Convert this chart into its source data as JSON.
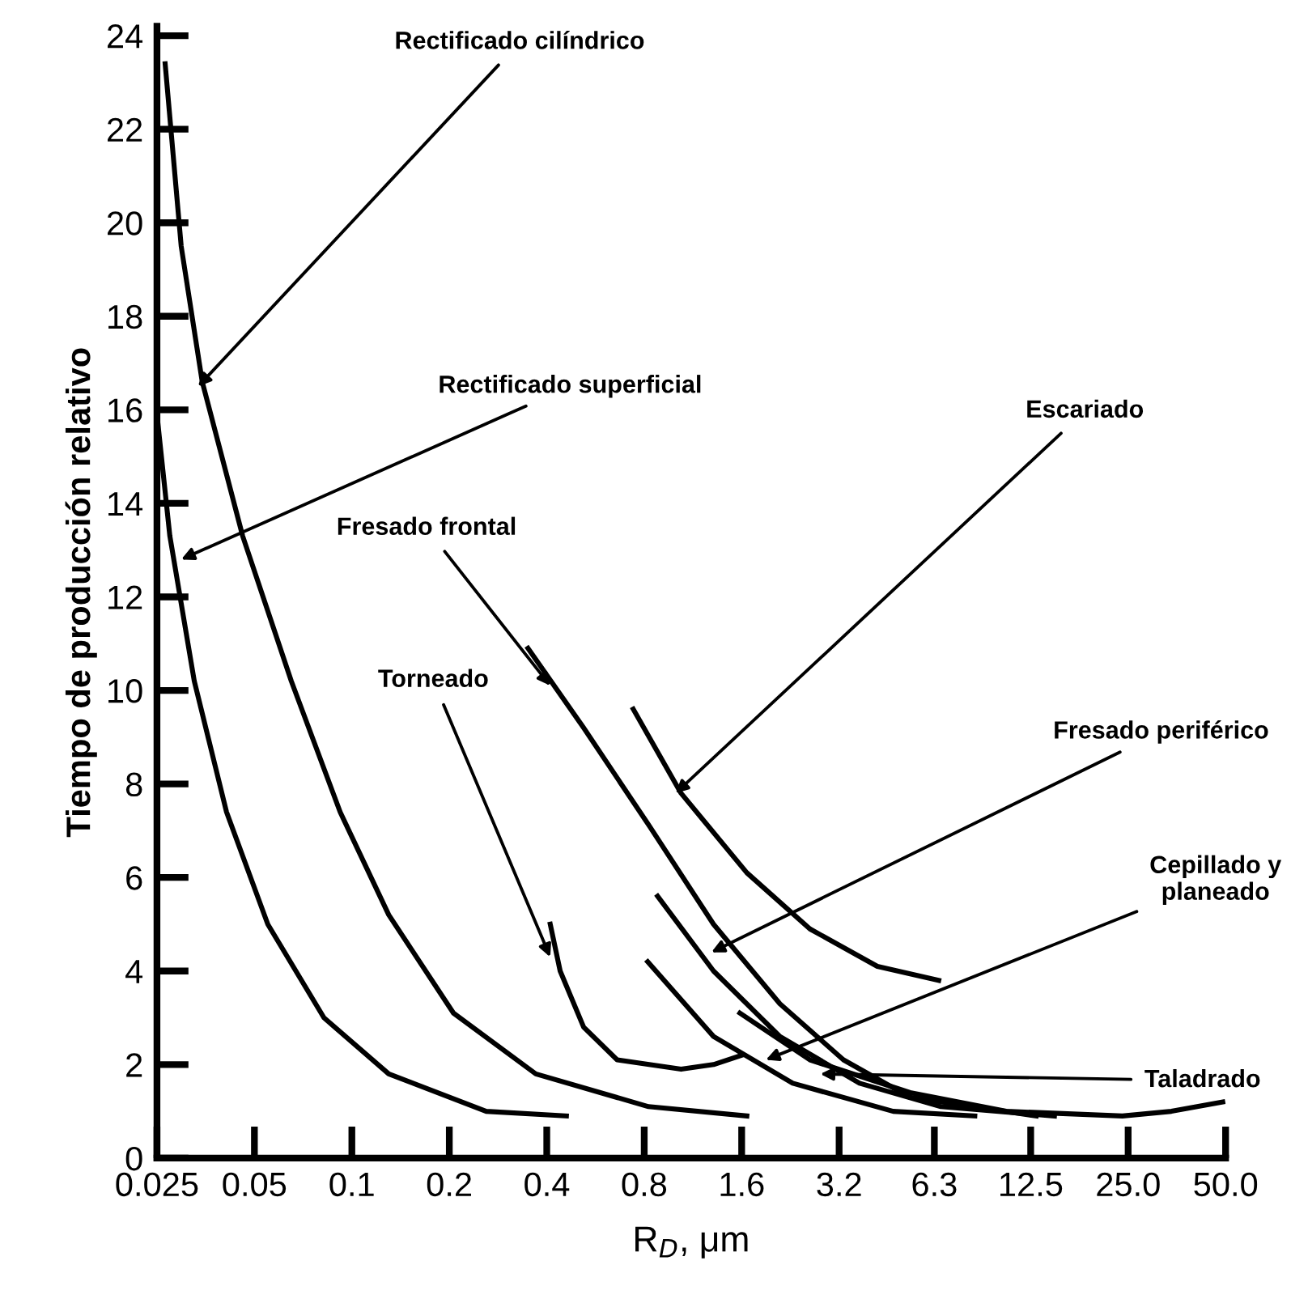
{
  "chart_data": {
    "type": "line",
    "xlabel": "R$_{D}$, μm",
    "ylabel": "Tiempo de producción relativo",
    "log": "x",
    "xlim": [
      0.025,
      50
    ],
    "ylim": [
      0,
      24.2
    ],
    "xticks": [
      0.025,
      0.05,
      0.1,
      0.2,
      0.4,
      0.8,
      1.6,
      3.2,
      6.3,
      12.5,
      {
        "value": 25,
        "label": "25.0"
      },
      {
        "value": 50,
        "label": "50.0"
      }
    ],
    "yticks": [
      0,
      2,
      4,
      6,
      8,
      10,
      12,
      14,
      16,
      18,
      20,
      22,
      24
    ],
    "grid": false,
    "marker": "none",
    "line_style": "solid",
    "series": [
      {
        "color": "#000000",
        "x": [
          0.0265,
          0.0297,
          0.0345,
          0.046,
          0.065,
          0.092,
          0.13,
          0.206,
          0.37,
          0.825,
          1.66
        ],
        "values": [
          23.4,
          19.5,
          16.6,
          13.3,
          10.2,
          7.4,
          5.2,
          3.1,
          1.8,
          1.1,
          0.9
        ]
      },
      {
        "color": "#000000",
        "x": [
          0.025,
          0.0274,
          0.0326,
          0.041,
          0.055,
          0.082,
          0.13,
          0.26,
          0.46
        ],
        "values": [
          15.9,
          13.3,
          10.2,
          7.4,
          5.0,
          3.0,
          1.8,
          1.0,
          0.9
        ]
      },
      {
        "color": "#000000",
        "x": [
          0.41,
          0.44,
          0.52,
          0.66,
          1.04,
          1.31,
          1.6
        ],
        "values": [
          5.0,
          4.0,
          2.8,
          2.1,
          1.9,
          2.0,
          2.2
        ]
      },
      {
        "color": "#000000",
        "x": [
          0.35,
          0.52,
          0.83,
          1.31,
          2.1,
          3.3,
          5.3,
          13
        ],
        "values": [
          10.9,
          9.2,
          7.1,
          5.0,
          3.3,
          2.1,
          1.3,
          0.9
        ]
      },
      {
        "color": "#000000",
        "x": [
          0.74,
          1.04,
          1.66,
          2.6,
          4.2,
          6.5
        ],
        "values": [
          9.6,
          7.8,
          6.1,
          4.9,
          4.1,
          3.8
        ]
      },
      {
        "color": "#000000",
        "x": [
          0.88,
          1.31,
          2.1,
          3.7,
          6.6,
          14.8
        ],
        "values": [
          5.6,
          4.0,
          2.6,
          1.6,
          1.1,
          0.9
        ]
      },
      {
        "color": "#000000",
        "x": [
          0.82,
          1.31,
          2.3,
          4.7,
          8.4
        ],
        "values": [
          4.2,
          2.6,
          1.6,
          1.0,
          0.9
        ]
      },
      {
        "color": "#000000",
        "x": [
          1.58,
          2.6,
          5.3,
          10.5,
          24,
          34,
          49
        ],
        "values": [
          3.1,
          2.1,
          1.4,
          1.0,
          0.9,
          1.0,
          1.2
        ]
      }
    ],
    "annotations": [
      {
        "text": "Rectificado cilíndrico",
        "x": 0.0335,
        "y": 16.5
      },
      {
        "text": "Rectificado superficial",
        "x": 0.0297,
        "y": 12.8
      },
      {
        "text": "Fresado frontal",
        "x": 0.41,
        "y": 10.1
      },
      {
        "text": "Escariado",
        "x": 1.0,
        "y": 7.8
      },
      {
        "text": "Torneado",
        "x": 0.41,
        "y": 4.3
      },
      {
        "text": "Fresado periférico",
        "x": 1.29,
        "y": 4.4
      },
      {
        "text": "Cepillado y\nplaneado",
        "x": 1.9,
        "y": 2.1
      },
      {
        "text": "Taladrado",
        "x": 2.8,
        "y": 1.8
      }
    ]
  }
}
